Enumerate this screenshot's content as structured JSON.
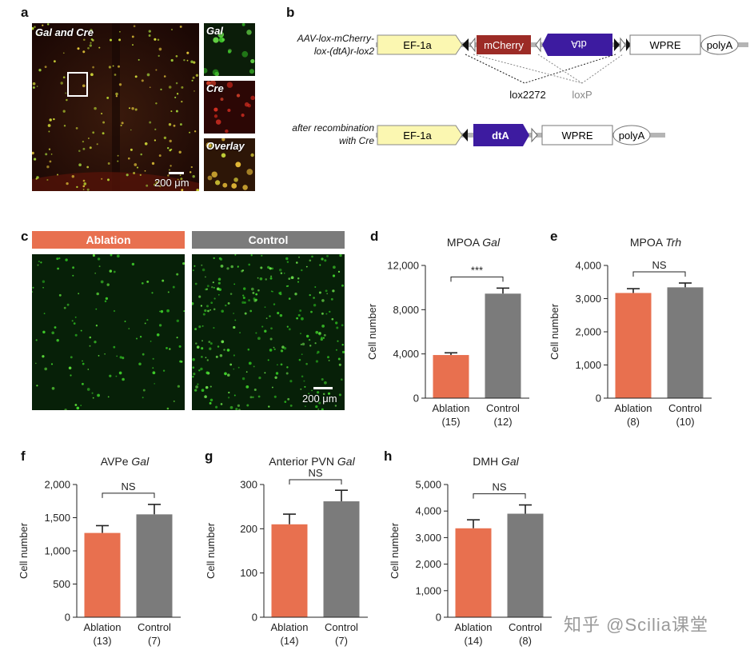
{
  "panels": {
    "a": "a",
    "b": "b",
    "c": "c",
    "d": "d",
    "e": "e",
    "f": "f",
    "g": "g",
    "h": "h"
  },
  "panel_a": {
    "main_label": "Gal and Cre",
    "inset_labels": [
      "Gal",
      "Cre",
      "Overlay"
    ],
    "scale_label": "200 μm"
  },
  "panel_b": {
    "construct1_label": [
      "AAV-lox-mCherry-",
      "lox-(dtA)r-lox2"
    ],
    "construct1_elements": [
      "EF-1a",
      "mCherry",
      "dtA",
      "WPRE",
      "polyA"
    ],
    "lox_labels": [
      "lox2272",
      "loxP"
    ],
    "construct2_label": [
      "after recombination",
      "with Cre"
    ],
    "construct2_elements": [
      "EF-1a",
      "dtA",
      "WPRE",
      "polyA"
    ]
  },
  "panel_c": {
    "groups": [
      "Ablation",
      "Control"
    ],
    "scale_label": "200 μm"
  },
  "colors": {
    "ablation": "#e8704f",
    "control": "#7b7b7b",
    "ef1a": "#fbf7b1",
    "mcherry": "#9c2b26",
    "dta": "#3d1ba0",
    "cell_green": "#5ee03a",
    "watermark": "#9a9a9a"
  },
  "chart_data": [
    {
      "type": "bar",
      "panel": "d",
      "title_plain": "MPOA ",
      "title_italic": "Gal",
      "ylabel": "Cell number",
      "categories": [
        "Ablation",
        "Control"
      ],
      "n_labels": [
        "(15)",
        "(12)"
      ],
      "values": [
        3900,
        9450
      ],
      "errors": [
        200,
        500
      ],
      "ylim": [
        0,
        12000
      ],
      "yticks": [
        0,
        4000,
        8000,
        12000
      ],
      "ytick_labels": [
        "0",
        "4,000",
        "8,000",
        "12,000"
      ],
      "significance": "***"
    },
    {
      "type": "bar",
      "panel": "e",
      "title_plain": "MPOA ",
      "title_italic": "Trh",
      "ylabel": "Cell number",
      "categories": [
        "Ablation",
        "Control"
      ],
      "n_labels": [
        "(8)",
        "(10)"
      ],
      "values": [
        3170,
        3340
      ],
      "errors": [
        130,
        130
      ],
      "ylim": [
        0,
        4000
      ],
      "yticks": [
        0,
        1000,
        2000,
        3000,
        4000
      ],
      "ytick_labels": [
        "0",
        "1,000",
        "2,000",
        "3,000",
        "4,000"
      ],
      "significance": "NS"
    },
    {
      "type": "bar",
      "panel": "f",
      "title_plain": "AVPe ",
      "title_italic": "Gal",
      "ylabel": "Cell number",
      "categories": [
        "Ablation",
        "Control"
      ],
      "n_labels": [
        "(13)",
        "(7)"
      ],
      "values": [
        1270,
        1550
      ],
      "errors": [
        110,
        150
      ],
      "ylim": [
        0,
        2000
      ],
      "yticks": [
        0,
        500,
        1000,
        1500,
        2000
      ],
      "ytick_labels": [
        "0",
        "500",
        "1,000",
        "1,500",
        "2,000"
      ],
      "significance": "NS"
    },
    {
      "type": "bar",
      "panel": "g",
      "title_plain": "Anterior PVN ",
      "title_italic": "Gal",
      "ylabel": "Cell number",
      "categories": [
        "Ablation",
        "Control"
      ],
      "n_labels": [
        "(14)",
        "(7)"
      ],
      "values": [
        210,
        262
      ],
      "errors": [
        23,
        25
      ],
      "ylim": [
        0,
        300
      ],
      "yticks": [
        0,
        100,
        200,
        300
      ],
      "ytick_labels": [
        "0",
        "100",
        "200",
        "300"
      ],
      "significance": "NS"
    },
    {
      "type": "bar",
      "panel": "h",
      "title_plain": "DMH ",
      "title_italic": "Gal",
      "ylabel": "Cell number",
      "categories": [
        "Ablation",
        "Control"
      ],
      "n_labels": [
        "(14)",
        "(8)"
      ],
      "values": [
        3350,
        3900
      ],
      "errors": [
        320,
        330
      ],
      "ylim": [
        0,
        5000
      ],
      "yticks": [
        0,
        1000,
        2000,
        3000,
        4000,
        5000
      ],
      "ytick_labels": [
        "0",
        "1,000",
        "2,000",
        "3,000",
        "4,000",
        "5,000"
      ],
      "significance": "NS"
    }
  ],
  "watermark": "知乎 @Scilia课堂"
}
